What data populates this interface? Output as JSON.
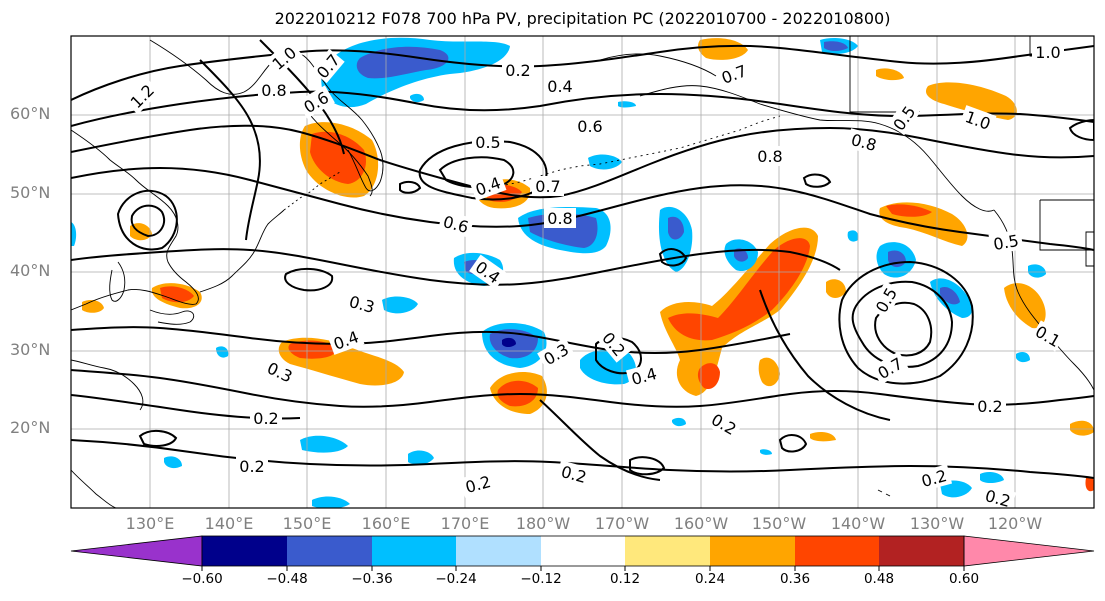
{
  "title": "2022010212 F078 700 hPa PV, precipitation PC (2022010700 - 2022010800)",
  "lat_labels": [
    "60°N",
    "50°N",
    "40°N",
    "30°N",
    "20°N"
  ],
  "lon_labels": [
    "130°E",
    "140°E",
    "150°E",
    "160°E",
    "170°E",
    "180°W",
    "170°W",
    "160°W",
    "150°W",
    "140°W",
    "130°W",
    "120°W"
  ],
  "colorbar": {
    "ticks": [
      "−0.60",
      "−0.48",
      "−0.36",
      "−0.24",
      "−0.12",
      "0.12",
      "0.24",
      "0.36",
      "0.48",
      "0.60"
    ],
    "colors": [
      "#9932cc",
      "#00008b",
      "#3a5bcd",
      "#00bfff",
      "#b0e0ff",
      "#ffffff",
      "#ffe87c",
      "#ffa500",
      "#ff4500",
      "#b22222",
      "#ff88aa"
    ]
  },
  "contour_labels": [
    "1.0",
    "1.2",
    "0.8",
    "0.6",
    "0.7",
    "0.2",
    "0.4",
    "0.7",
    "0.6",
    "0.5",
    "0.4",
    "0.7",
    "0.8",
    "0.8",
    "0.6",
    "1.0",
    "0.4",
    "0.3",
    "0.4",
    "0.3",
    "0.2",
    "0.2",
    "0.2",
    "0.2",
    "0.3",
    "0.2",
    "0.4",
    "0.2",
    "0.5",
    "0.5",
    "0.7",
    "0.2",
    "0.2",
    "0.2",
    "0.5",
    "1.0",
    "0.8",
    "0.1"
  ]
}
